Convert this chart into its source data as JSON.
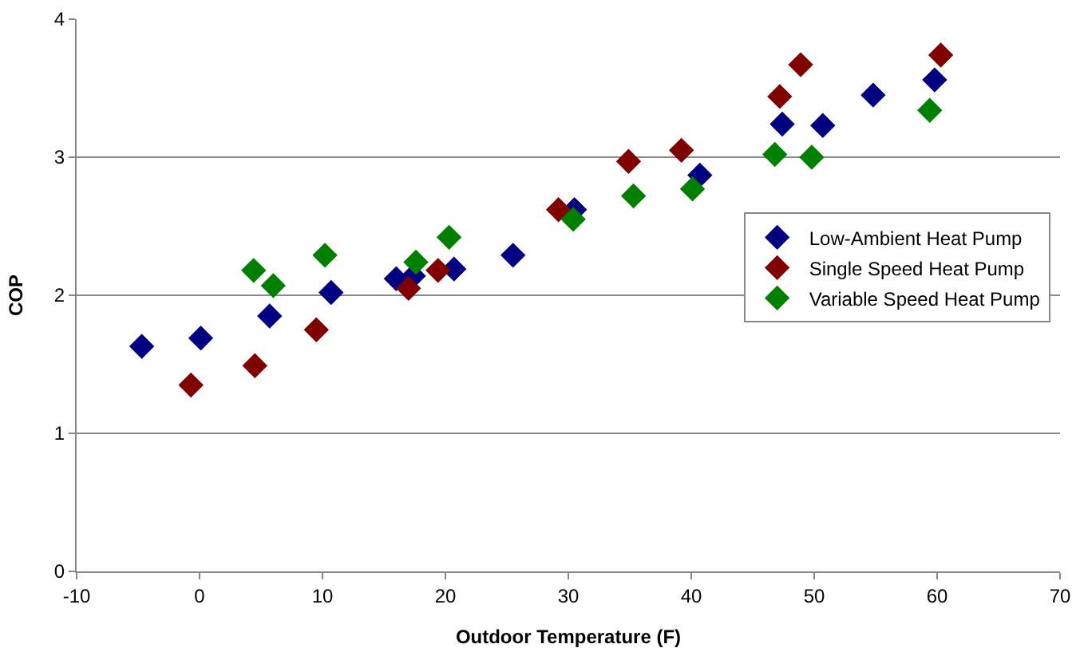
{
  "chart_data": {
    "type": "scatter",
    "xlabel": "Outdoor Temperature (F)",
    "ylabel": "COP",
    "marker": "diamond",
    "grid": "y",
    "legend": "right",
    "xlim": [
      -10,
      70
    ],
    "xticks": [
      -10,
      0,
      10,
      20,
      30,
      40,
      50,
      60,
      70
    ],
    "ylim": [
      0,
      4
    ],
    "yticks": [
      0,
      1,
      2,
      3,
      4
    ],
    "series": [
      {
        "name": "Low-Ambient Heat Pump",
        "color": "#000080",
        "x": [
          -4.7,
          0.1,
          5.7,
          10.7,
          16,
          17.4,
          20.7,
          25.5,
          30.5,
          40.7,
          47.4,
          50.7,
          54.8,
          59.8
        ],
        "values": [
          1.63,
          1.69,
          1.85,
          2.02,
          2.12,
          2.14,
          2.19,
          2.29,
          2.62,
          2.87,
          3.24,
          3.23,
          3.45,
          3.56
        ]
      },
      {
        "name": "Single Speed Heat Pump",
        "color": "#800000",
        "x": [
          -0.7,
          4.5,
          9.5,
          17,
          19.4,
          29.2,
          34.9,
          39.2,
          47.2,
          48.9,
          60.3
        ],
        "values": [
          1.35,
          1.49,
          1.75,
          2.05,
          2.18,
          2.62,
          2.97,
          3.05,
          3.44,
          3.67,
          3.74
        ]
      },
      {
        "name": "Variable Speed Heat Pump",
        "color": "#008000",
        "x": [
          4.4,
          6,
          10.2,
          17.6,
          20.3,
          30.4,
          35.3,
          40.1,
          46.8,
          49.8,
          59.4
        ],
        "values": [
          2.18,
          2.07,
          2.29,
          2.24,
          2.42,
          2.55,
          2.72,
          2.77,
          3.02,
          3,
          3.34
        ]
      }
    ]
  }
}
